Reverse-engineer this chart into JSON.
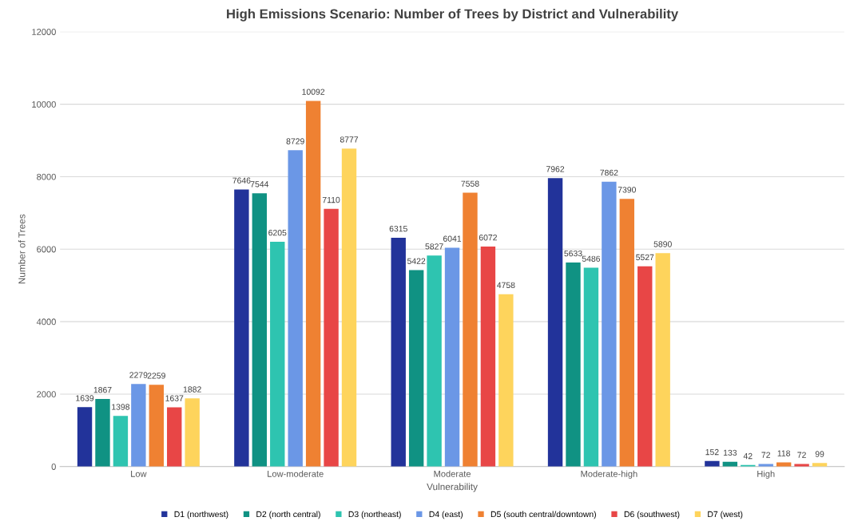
{
  "chart_data": {
    "type": "bar",
    "title": "High Emissions Scenario: Number of Trees by District and Vulnerability",
    "xlabel": "Vulnerability",
    "ylabel": "Number of Trees",
    "categories": [
      "Low",
      "Low-moderate",
      "Moderate",
      "Moderate-high",
      "High"
    ],
    "series": [
      {
        "name": "D1 (northwest)",
        "color": "#22339a",
        "values": [
          1639,
          7646,
          6315,
          7962,
          152
        ]
      },
      {
        "name": "D2 (north central)",
        "color": "#109283",
        "values": [
          1867,
          7544,
          5422,
          5633,
          133
        ]
      },
      {
        "name": "D3 (northeast)",
        "color": "#2ec4b0",
        "values": [
          1398,
          6205,
          5827,
          5486,
          42
        ]
      },
      {
        "name": "D4 (east)",
        "color": "#6b97e6",
        "values": [
          2279,
          8729,
          6041,
          7862,
          72
        ]
      },
      {
        "name": "D5 (south central/downtown)",
        "color": "#ef8132",
        "values": [
          2259,
          10092,
          7558,
          7390,
          118
        ]
      },
      {
        "name": "D6 (southwest)",
        "color": "#e84646",
        "values": [
          1637,
          7110,
          6072,
          5527,
          72
        ]
      },
      {
        "name": "D7 (west)",
        "color": "#fed45c",
        "values": [
          1882,
          8777,
          4758,
          5890,
          99
        ]
      }
    ],
    "ylim": [
      0,
      12000
    ],
    "yticks": [
      0,
      2000,
      4000,
      6000,
      8000,
      10000,
      12000
    ],
    "grid": "y",
    "legend": "bottom",
    "data_labels": true
  }
}
